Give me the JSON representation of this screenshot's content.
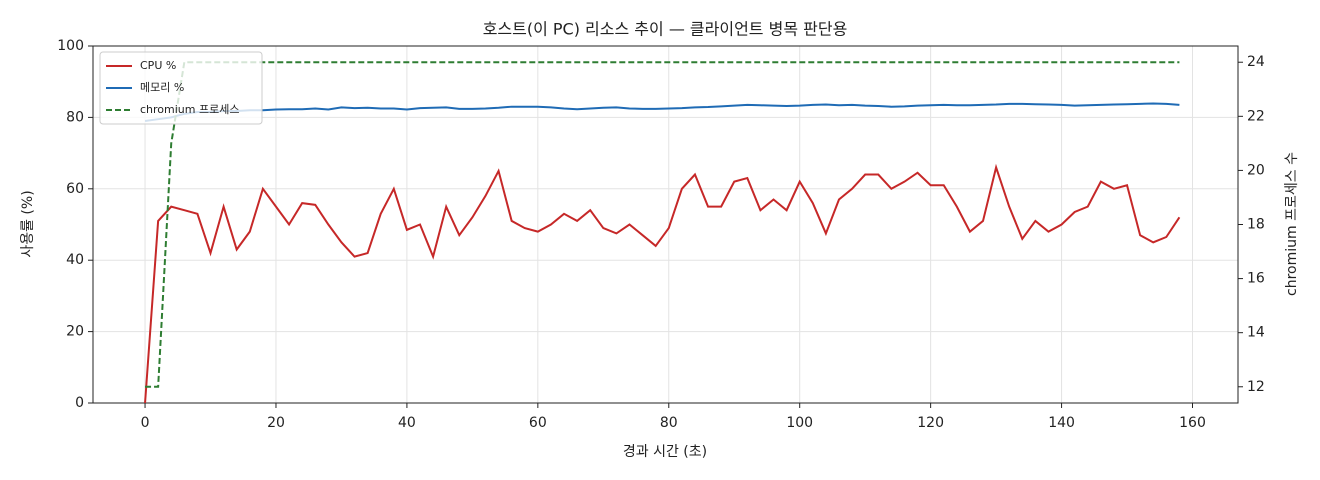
{
  "chart_data": {
    "type": "line",
    "title": "호스트(이 PC) 리소스 추이 — 클라이언트 병목 판단용",
    "xlabel": "경과 시간 (초)",
    "ylabel": "사용률 (%)",
    "y2label": "chromium 프로세스 수",
    "x": [
      0,
      2,
      4,
      6,
      8,
      10,
      12,
      14,
      16,
      18,
      20,
      22,
      24,
      26,
      28,
      30,
      32,
      34,
      36,
      38,
      40,
      42,
      44,
      46,
      48,
      50,
      52,
      54,
      56,
      58,
      60,
      62,
      64,
      66,
      68,
      70,
      72,
      74,
      76,
      78,
      80,
      82,
      84,
      86,
      88,
      90,
      92,
      94,
      96,
      98,
      100,
      102,
      104,
      106,
      108,
      110,
      112,
      114,
      116,
      118,
      120,
      122,
      124,
      126,
      128,
      130,
      132,
      134,
      136,
      138,
      140,
      142,
      144,
      146,
      148,
      150,
      152,
      154,
      156,
      158
    ],
    "series": [
      {
        "name": "CPU %",
        "color": "#c62828",
        "linestyle": "solid",
        "values": [
          0,
          51,
          55,
          54,
          53,
          42,
          55,
          43,
          48,
          60,
          55,
          50,
          56,
          55.5,
          50,
          45,
          41,
          42,
          53,
          60,
          48.5,
          50,
          41,
          55,
          47,
          52,
          58,
          65,
          51,
          49,
          48,
          50,
          53,
          51,
          54,
          49,
          47.5,
          50,
          47,
          44,
          49,
          60,
          64,
          55,
          55,
          62,
          63,
          54,
          57,
          54,
          62,
          56,
          47.5,
          57,
          60,
          64,
          64,
          60,
          62,
          64.5,
          61,
          61,
          55,
          48,
          51,
          66,
          55,
          46,
          51,
          48,
          50,
          53.5,
          55,
          62,
          60,
          61,
          47,
          45,
          46.5,
          52
        ]
      },
      {
        "name": "메모리 %",
        "color": "#1f6bb5",
        "linestyle": "solid",
        "values": [
          79,
          79.5,
          80,
          81,
          81.5,
          81.5,
          81.8,
          81.8,
          82,
          82,
          82.2,
          82.3,
          82.3,
          82.5,
          82.2,
          82.8,
          82.6,
          82.7,
          82.5,
          82.5,
          82.2,
          82.6,
          82.7,
          82.8,
          82.4,
          82.4,
          82.5,
          82.7,
          83,
          83,
          83,
          82.8,
          82.5,
          82.3,
          82.5,
          82.7,
          82.8,
          82.5,
          82.4,
          82.4,
          82.5,
          82.6,
          82.8,
          82.9,
          83.1,
          83.3,
          83.5,
          83.4,
          83.3,
          83.2,
          83.3,
          83.5,
          83.6,
          83.4,
          83.5,
          83.3,
          83.2,
          83,
          83.1,
          83.3,
          83.4,
          83.5,
          83.4,
          83.4,
          83.5,
          83.6,
          83.8,
          83.8,
          83.7,
          83.6,
          83.5,
          83.3,
          83.4,
          83.5,
          83.6,
          83.7,
          83.8,
          83.9,
          83.8,
          83.5
        ]
      },
      {
        "name": "chromium 프로세스",
        "color": "#2e7d32",
        "linestyle": "dashed",
        "axis": "y2",
        "values": [
          12,
          12,
          21,
          24,
          24,
          24,
          24,
          24,
          24,
          24,
          24,
          24,
          24,
          24,
          24,
          24,
          24,
          24,
          24,
          24,
          24,
          24,
          24,
          24,
          24,
          24,
          24,
          24,
          24,
          24,
          24,
          24,
          24,
          24,
          24,
          24,
          24,
          24,
          24,
          24,
          24,
          24,
          24,
          24,
          24,
          24,
          24,
          24,
          24,
          24,
          24,
          24,
          24,
          24,
          24,
          24,
          24,
          24,
          24,
          24,
          24,
          24,
          24,
          24,
          24,
          24,
          24,
          24,
          24,
          24,
          24,
          24,
          24,
          24,
          24,
          24,
          24,
          24,
          24,
          24
        ]
      }
    ],
    "xlim": [
      -7.95,
      166.95
    ],
    "xticks": [
      0,
      20,
      40,
      60,
      80,
      100,
      120,
      140,
      160
    ],
    "ylim": [
      0,
      100
    ],
    "yticks": [
      0,
      20,
      40,
      60,
      80,
      100
    ],
    "y2lim": [
      11.4,
      24.6
    ],
    "y2ticks": [
      12,
      14,
      16,
      18,
      20,
      22,
      24
    ],
    "grid": true,
    "legend": "upper left"
  }
}
